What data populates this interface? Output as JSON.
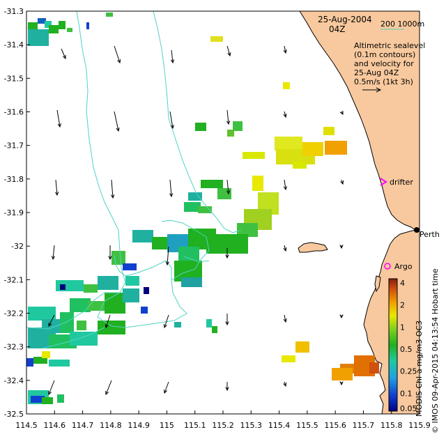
{
  "header": {
    "date": "25-Aug-2004",
    "time": "04Z"
  },
  "scale_bar": {
    "label": "200  1000m",
    "color": "#4fd3c4"
  },
  "velocity_note": {
    "lines": [
      "Altimetric sealevel",
      "(0.1m contours)",
      "and velocity for",
      "25-Aug 04Z",
      "0.5m/s (1kt 3h)"
    ]
  },
  "markers": {
    "drifter": "drifter",
    "argo": "Argo",
    "city": "Perth",
    "drifter_color": "#ff00ff",
    "argo_color": "#ff00ff"
  },
  "axes": {
    "x_ticks": [
      "114.5",
      "114.6",
      "114.7",
      "114.8",
      "114.9",
      "115",
      "115.1",
      "115.2",
      "115.3",
      "115.4",
      "115.5",
      "115.6",
      "115.7",
      "115.8",
      "115.9"
    ],
    "y_ticks": [
      "-31.3",
      "-31.4",
      "-31.5",
      "-31.6",
      "-31.7",
      "-31.8",
      "-31.9",
      "-32",
      "-32.1",
      "-32.2",
      "-32.3",
      "-32.4",
      "-32.5"
    ],
    "lon_range": [
      114.5,
      115.9
    ],
    "lat_range": [
      -32.5,
      -31.3
    ]
  },
  "colorbar": {
    "title": "MODIS Chl-a mg/m3 OC3",
    "ticks": [
      "4",
      "2",
      "1",
      "0.5",
      "0.25",
      "0.1",
      "0.05"
    ]
  },
  "credit": "© IMOS 09-Apr-2015 04:13:54 Hobart time",
  "colors": {
    "land": "#f8c99e",
    "contour": "#4fd3c4",
    "ocean": "#ffffff"
  }
}
